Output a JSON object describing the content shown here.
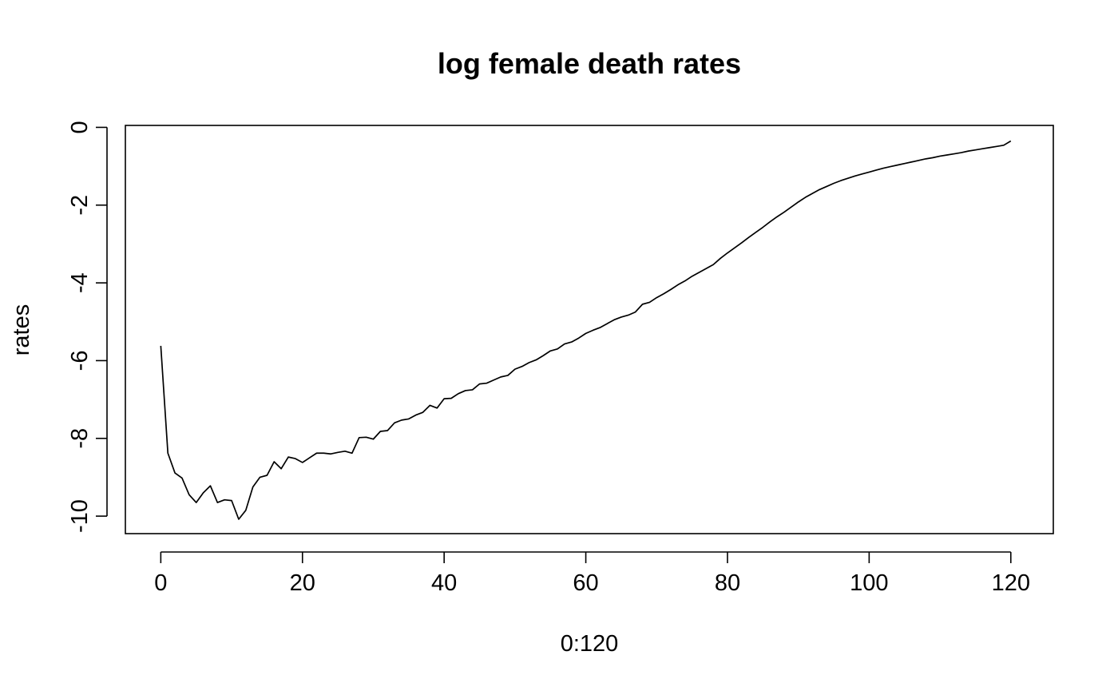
{
  "chart_data": {
    "type": "line",
    "title": "log female death rates",
    "xlabel": "0:120",
    "ylabel": "rates",
    "xlim": [
      -5,
      126
    ],
    "ylim": [
      -10.45,
      0.05
    ],
    "x_ticks": [
      0,
      20,
      40,
      60,
      80,
      100,
      120
    ],
    "y_ticks": [
      0,
      -2,
      -4,
      -6,
      -8,
      -10
    ],
    "grid": false,
    "legend": "none",
    "line_color": "#000000",
    "series": [
      {
        "x": [
          0,
          1,
          2,
          3,
          4,
          5,
          6,
          7,
          8,
          9,
          10,
          11,
          12,
          13,
          14,
          15,
          16,
          17,
          18,
          19,
          20,
          21,
          22,
          23,
          24,
          25,
          26,
          27,
          28,
          29,
          30,
          31,
          32,
          33,
          34,
          35,
          36,
          37,
          38,
          39,
          40,
          41,
          42,
          43,
          44,
          45,
          46,
          47,
          48,
          49,
          50,
          51,
          52,
          53,
          54,
          55,
          56,
          57,
          58,
          59,
          60,
          61,
          62,
          63,
          64,
          65,
          66,
          67,
          68,
          69,
          70,
          71,
          72,
          73,
          74,
          75,
          76,
          77,
          78,
          79,
          80,
          81,
          82,
          83,
          84,
          85,
          86,
          87,
          88,
          89,
          90,
          91,
          92,
          93,
          94,
          95,
          96,
          97,
          98,
          99,
          100,
          101,
          102,
          103,
          104,
          105,
          106,
          107,
          108,
          109,
          110,
          111,
          112,
          113,
          114,
          115,
          116,
          117,
          118,
          119,
          120
        ],
        "y": [
          -5.62,
          -8.38,
          -8.89,
          -9.02,
          -9.45,
          -9.65,
          -9.4,
          -9.22,
          -9.65,
          -9.58,
          -9.6,
          -10.08,
          -9.85,
          -9.25,
          -9.0,
          -8.95,
          -8.6,
          -8.78,
          -8.48,
          -8.52,
          -8.62,
          -8.5,
          -8.38,
          -8.38,
          -8.4,
          -8.36,
          -8.33,
          -8.38,
          -7.98,
          -7.97,
          -8.02,
          -7.82,
          -7.8,
          -7.6,
          -7.53,
          -7.5,
          -7.4,
          -7.33,
          -7.15,
          -7.22,
          -6.98,
          -6.97,
          -6.85,
          -6.77,
          -6.75,
          -6.6,
          -6.58,
          -6.5,
          -6.42,
          -6.38,
          -6.22,
          -6.15,
          -6.05,
          -5.98,
          -5.87,
          -5.75,
          -5.7,
          -5.57,
          -5.52,
          -5.42,
          -5.3,
          -5.22,
          -5.15,
          -5.05,
          -4.95,
          -4.88,
          -4.83,
          -4.75,
          -4.55,
          -4.5,
          -4.38,
          -4.28,
          -4.17,
          -4.05,
          -3.95,
          -3.83,
          -3.73,
          -3.63,
          -3.53,
          -3.37,
          -3.23,
          -3.1,
          -2.97,
          -2.83,
          -2.7,
          -2.57,
          -2.43,
          -2.3,
          -2.18,
          -2.05,
          -1.92,
          -1.8,
          -1.7,
          -1.6,
          -1.52,
          -1.44,
          -1.37,
          -1.31,
          -1.25,
          -1.2,
          -1.15,
          -1.1,
          -1.05,
          -1.01,
          -0.97,
          -0.93,
          -0.89,
          -0.85,
          -0.81,
          -0.78,
          -0.74,
          -0.71,
          -0.68,
          -0.65,
          -0.61,
          -0.58,
          -0.55,
          -0.52,
          -0.49,
          -0.46,
          -0.35
        ]
      }
    ]
  }
}
